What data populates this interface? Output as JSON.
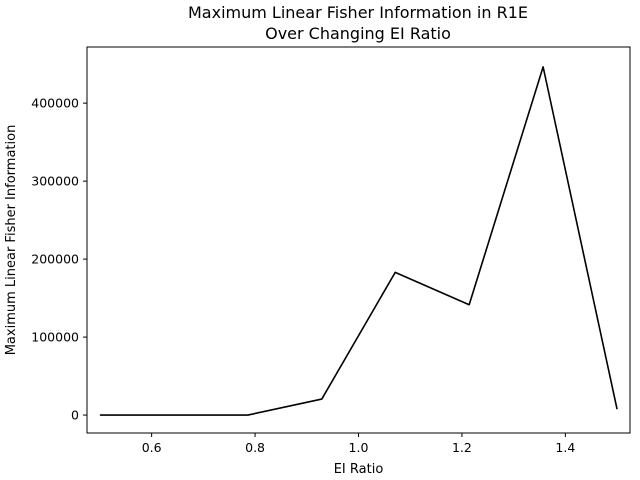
{
  "chart_data": {
    "type": "line",
    "title": [
      "Maximum Linear Fisher Information in R1E",
      "Over Changing EI Ratio"
    ],
    "xlabel": "EI Ratio",
    "ylabel": "Maximum Linear Fisher Information",
    "xlim": [
      0.475,
      1.525
    ],
    "ylim": [
      -23000,
      472000
    ],
    "xticks": [
      0.6,
      0.8,
      1.0,
      1.2,
      1.4
    ],
    "xtick_labels": [
      "0.6",
      "0.8",
      "1.0",
      "1.2",
      "1.4"
    ],
    "yticks": [
      0,
      100000,
      200000,
      300000,
      400000
    ],
    "ytick_labels": [
      "0",
      "100000",
      "200000",
      "300000",
      "400000"
    ],
    "grid": false,
    "series": [
      {
        "color": "#000000",
        "x": [
          0.5,
          0.643,
          0.786,
          0.929,
          1.071,
          1.214,
          1.357,
          1.5
        ],
        "y": [
          0,
          0,
          0,
          20500,
          183000,
          141500,
          446500,
          7500
        ]
      }
    ]
  }
}
